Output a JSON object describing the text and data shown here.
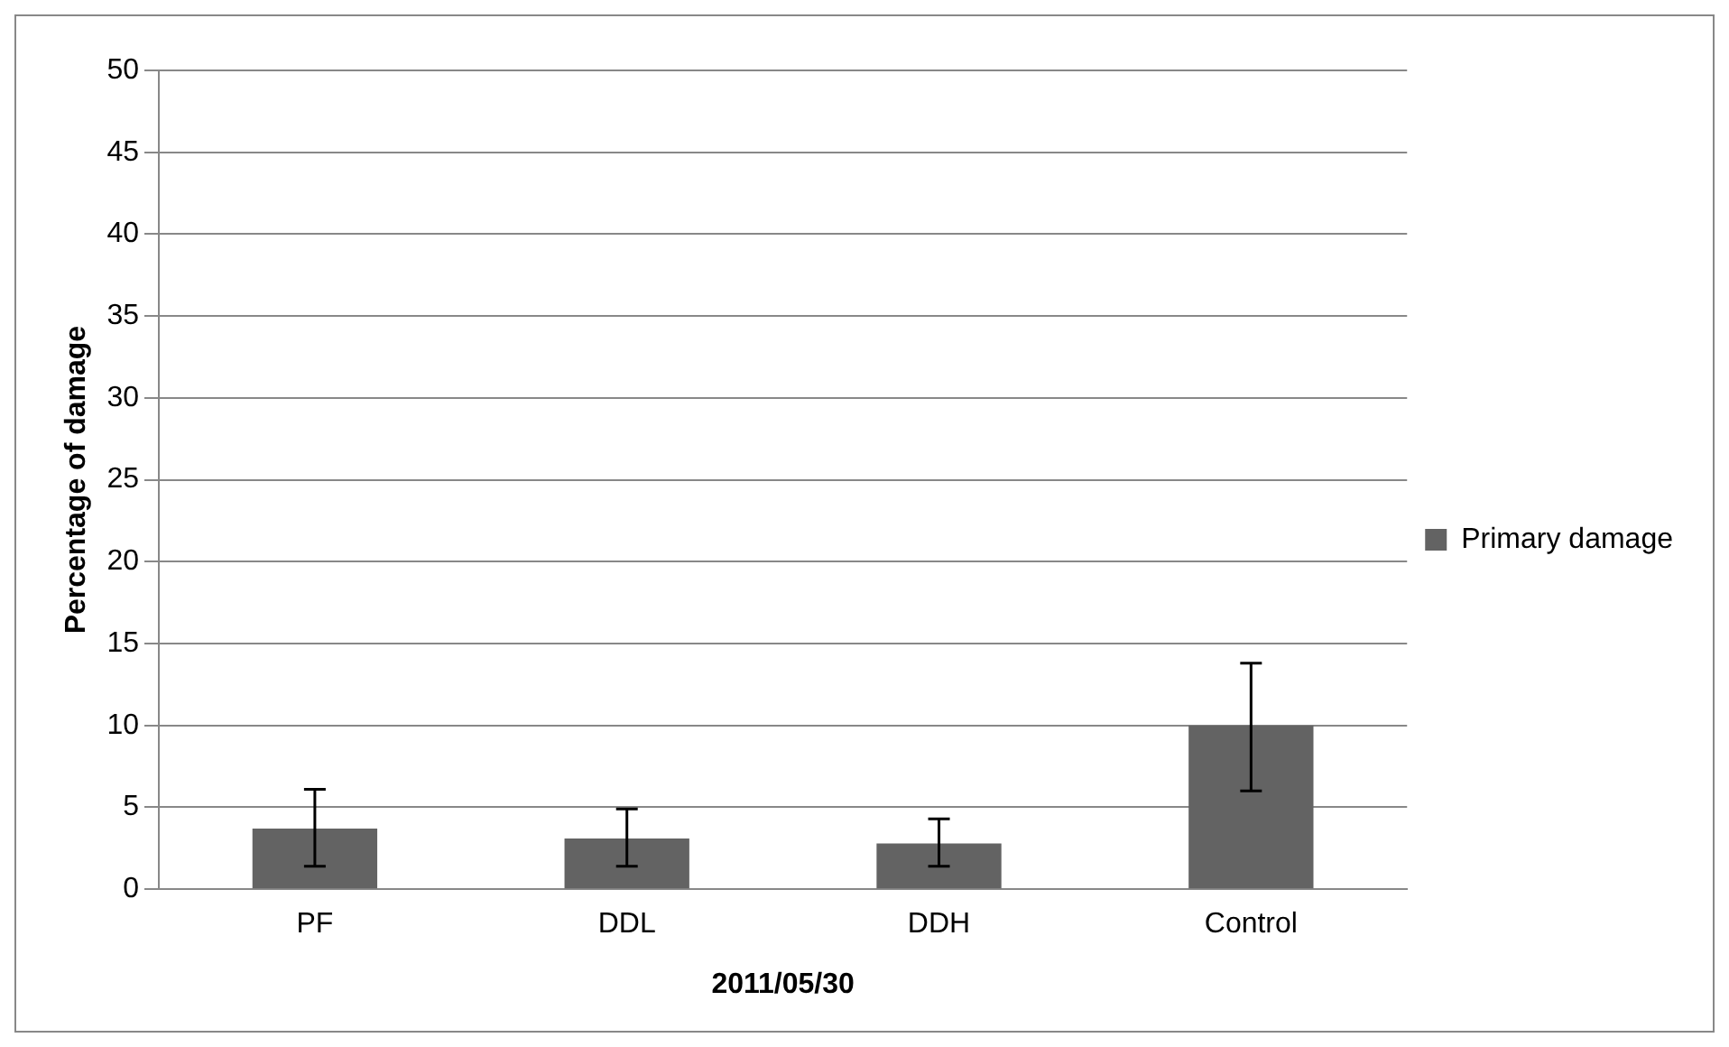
{
  "chart_data": {
    "type": "bar",
    "xlabel": "2011/05/30",
    "ylabel": "Percentage of damage",
    "categories": [
      "PF",
      "DDL",
      "DDH",
      "Control"
    ],
    "series": [
      {
        "name": "Primary damage",
        "color": "#636363",
        "values": [
          3.7,
          3.1,
          2.8,
          10.0
        ],
        "errors": [
          [
            1.4,
            6.1
          ],
          [
            1.4,
            4.9
          ],
          [
            1.4,
            4.3
          ],
          [
            6.0,
            13.8
          ]
        ]
      }
    ],
    "ylim": [
      0,
      50
    ],
    "yticks": [
      0,
      5,
      10,
      15,
      20,
      25,
      30,
      35,
      40,
      45,
      50
    ],
    "grid": "y",
    "legend": "right"
  }
}
